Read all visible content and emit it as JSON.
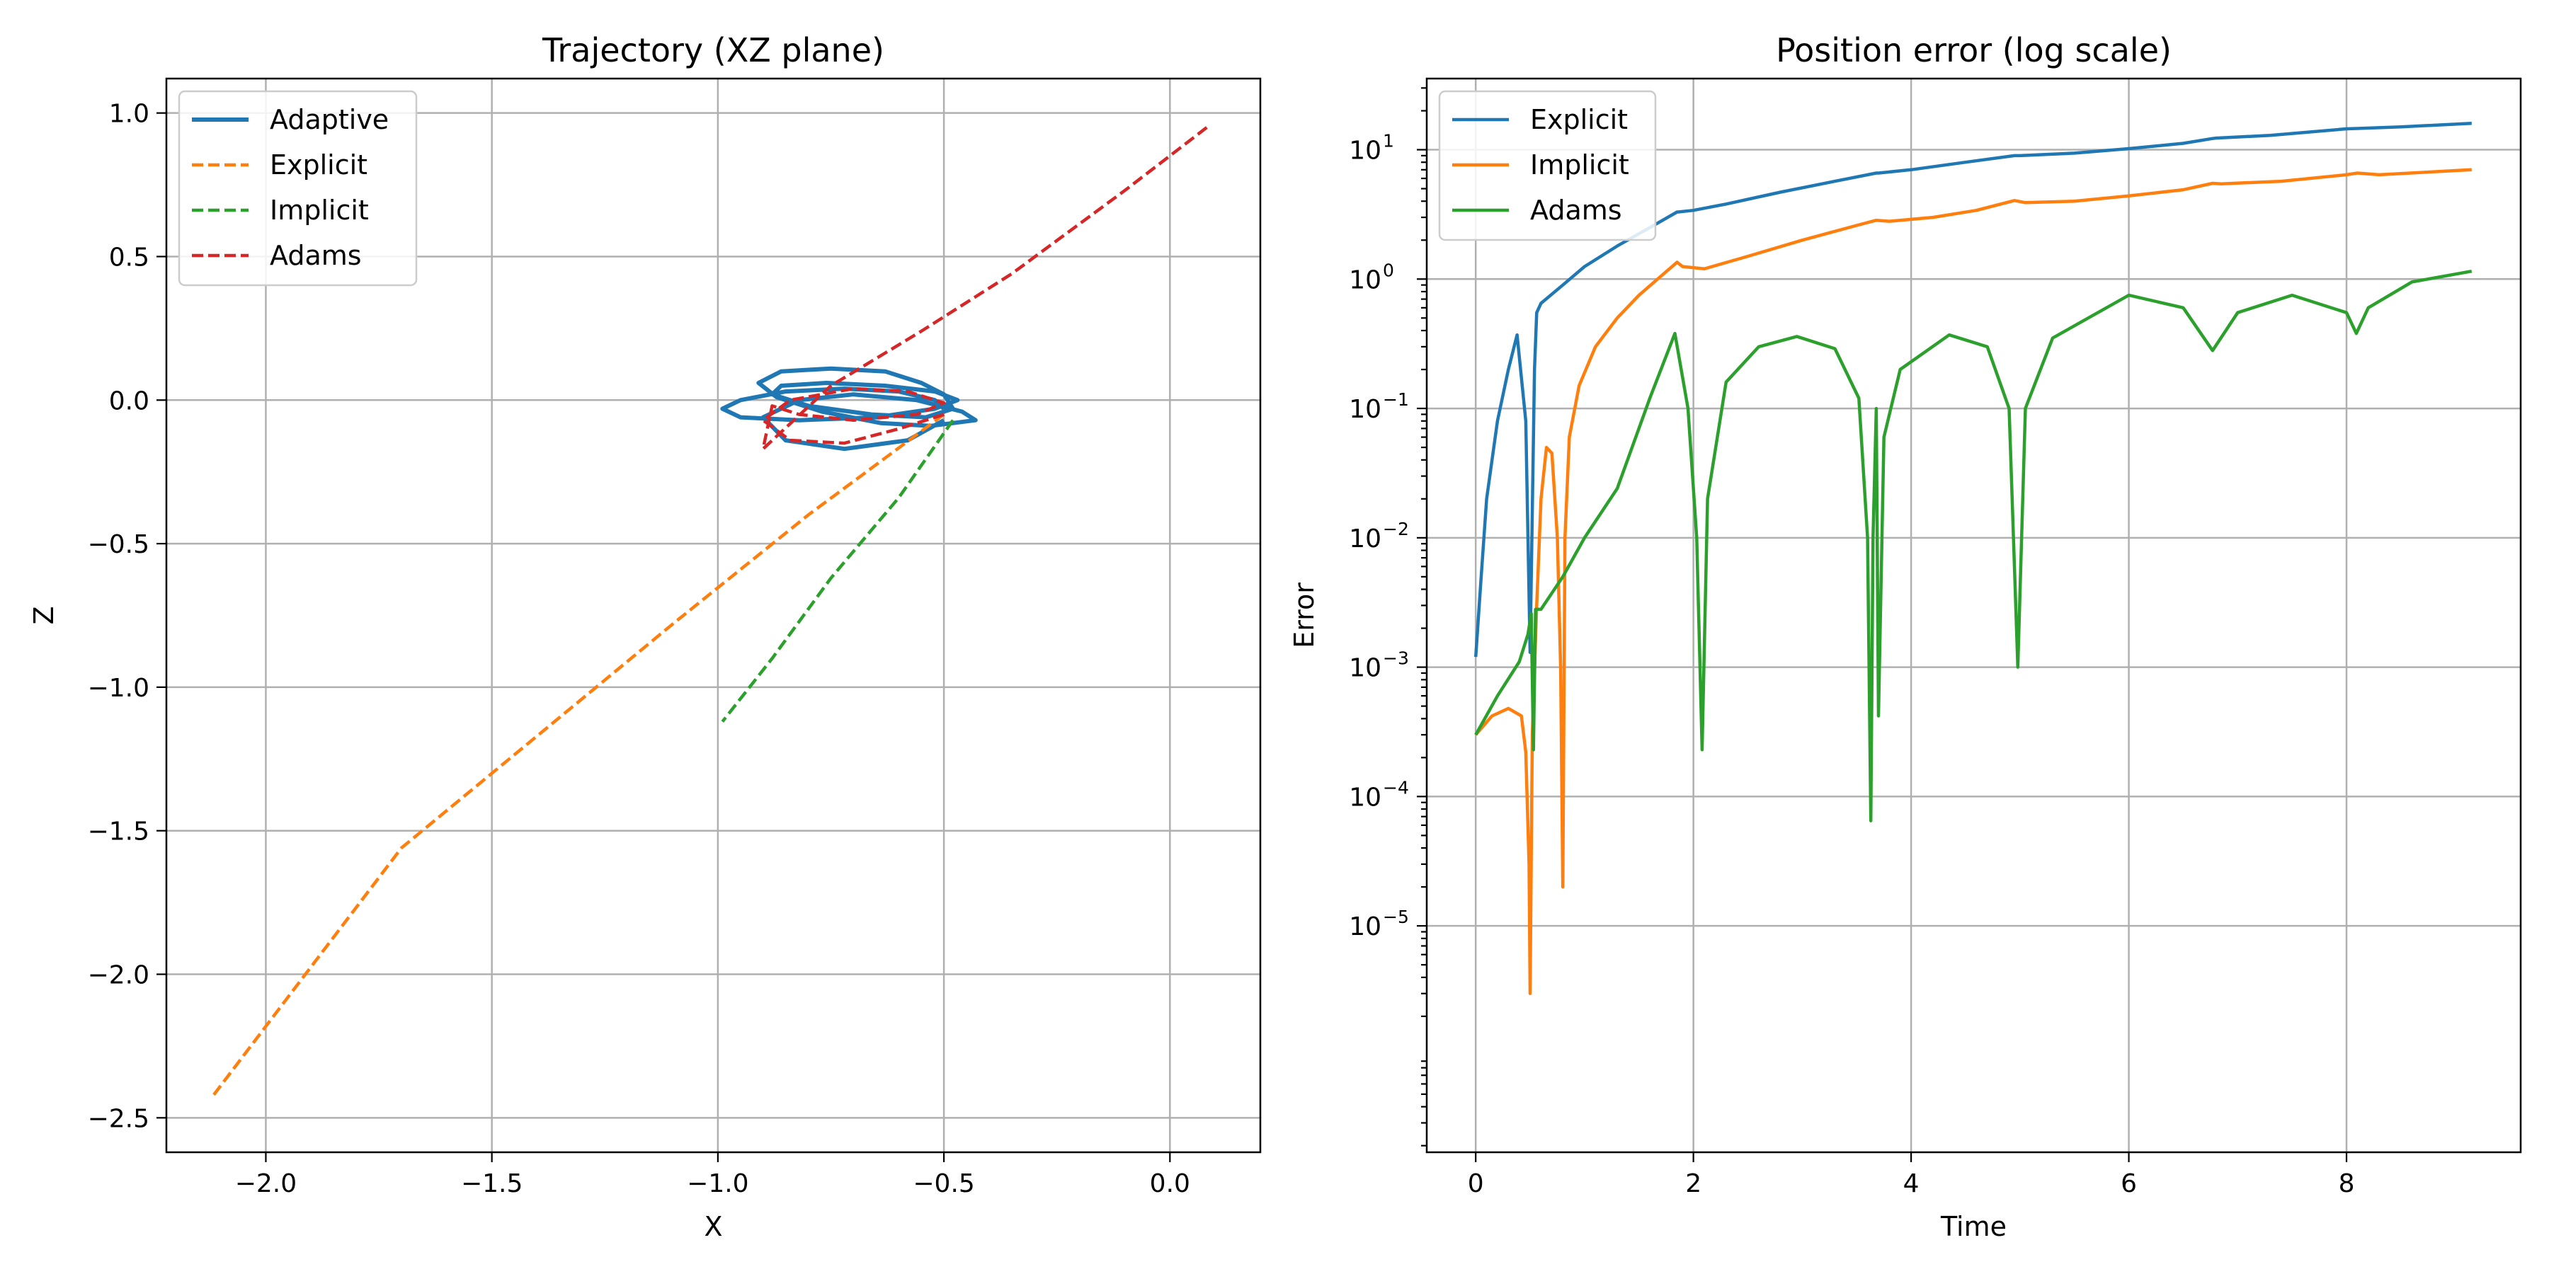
{
  "chart_data": [
    {
      "type": "line",
      "title": "Trajectory (XZ plane)",
      "xlabel": "X",
      "ylabel": "Z",
      "xlim": [
        -2.22,
        0.2
      ],
      "ylim": [
        -2.62,
        1.12
      ],
      "x_ticks": [
        -2.0,
        -1.5,
        -1.0,
        -0.5,
        0.0
      ],
      "x_tick_labels": [
        "−2.0",
        "−1.5",
        "−1.0",
        "−0.5",
        "0.0"
      ],
      "y_ticks": [
        -2.5,
        -2.0,
        -1.5,
        -1.0,
        -0.5,
        0.0,
        0.5,
        1.0
      ],
      "y_tick_labels": [
        "−2.5",
        "−2.0",
        "−1.5",
        "−1.0",
        "−0.5",
        "0.0",
        "0.5",
        "1.0"
      ],
      "grid": true,
      "legend": "upper-left",
      "series": [
        {
          "name": "Adaptive",
          "color": "#1f77b4",
          "style": "solid",
          "x": [
            -0.5,
            -0.52,
            -0.6,
            -0.72,
            -0.85,
            -0.95,
            -0.99,
            -0.95,
            -0.82,
            -0.65,
            -0.52,
            -0.47,
            -0.52,
            -0.63,
            -0.76,
            -0.86,
            -0.88,
            -0.8,
            -0.66,
            -0.54,
            -0.48,
            -0.5,
            -0.55,
            -0.63,
            -0.75,
            -0.86,
            -0.91,
            -0.87,
            -0.77,
            -0.64,
            -0.53,
            -0.43,
            -0.46,
            -0.56,
            -0.7,
            -0.82,
            -0.9,
            -0.85,
            -0.72,
            -0.58,
            -0.5
          ],
          "y": [
            -0.03,
            0.0,
            0.03,
            0.04,
            0.03,
            0.0,
            -0.03,
            -0.06,
            -0.07,
            -0.06,
            -0.03,
            0.0,
            0.03,
            0.05,
            0.06,
            0.05,
            0.02,
            -0.02,
            -0.05,
            -0.06,
            -0.03,
            0.02,
            0.06,
            0.1,
            0.11,
            0.1,
            0.06,
            0.01,
            -0.04,
            -0.08,
            -0.09,
            -0.07,
            -0.04,
            -0.0,
            0.02,
            0.0,
            -0.06,
            -0.14,
            -0.17,
            -0.14,
            -0.07
          ]
        },
        {
          "name": "Explicit",
          "color": "#ff7f0e",
          "style": "dashed",
          "x": [
            -0.5,
            -0.8,
            -1.1,
            -1.4,
            -1.7,
            -2.12
          ],
          "y": [
            -0.05,
            -0.4,
            -0.78,
            -1.17,
            -1.56,
            -2.43
          ]
        },
        {
          "name": "Implicit",
          "color": "#2ca02c",
          "style": "dashed",
          "x": [
            -0.48,
            -0.6,
            -0.75,
            -0.88,
            -0.99
          ],
          "y": [
            -0.07,
            -0.34,
            -0.62,
            -0.9,
            -1.12
          ]
        },
        {
          "name": "Adams",
          "color": "#d62728",
          "style": "dashed",
          "x": [
            -0.5,
            -0.6,
            -0.72,
            -0.84,
            -0.9,
            -0.84,
            -0.7,
            -0.58,
            -0.5,
            -0.56,
            -0.7,
            -0.82,
            -0.88,
            -0.9,
            -0.75,
            -0.55,
            -0.35,
            -0.1,
            0.09
          ],
          "y": [
            -0.05,
            -0.1,
            -0.15,
            -0.14,
            -0.07,
            0.0,
            0.04,
            0.03,
            -0.01,
            -0.05,
            -0.07,
            -0.05,
            -0.02,
            -0.17,
            0.05,
            0.24,
            0.44,
            0.73,
            0.96
          ]
        }
      ]
    },
    {
      "type": "line",
      "title": "Position error (log scale)",
      "xlabel": "Time",
      "ylabel": "Error",
      "xlim": [
        -0.45,
        9.6
      ],
      "ylim": [
        -6.75,
        1.55
      ],
      "yscale": "log",
      "x_ticks": [
        0,
        2,
        4,
        6,
        8
      ],
      "x_tick_labels": [
        "0",
        "2",
        "4",
        "6",
        "8"
      ],
      "y_ticks": [
        -5,
        -4,
        -3,
        -2,
        -1,
        0,
        1
      ],
      "y_tick_labels": [
        "10",
        "10",
        "10",
        "10",
        "10",
        "10",
        "10"
      ],
      "y_tick_exponents": [
        "−5",
        "−4",
        "−3",
        "−2",
        "−1",
        "0",
        "1"
      ],
      "grid": true,
      "legend": "upper-left",
      "series": [
        {
          "name": "Explicit",
          "color": "#1f77b4",
          "style": "solid",
          "x": [
            0.0,
            0.05,
            0.1,
            0.2,
            0.3,
            0.38,
            0.46,
            0.5,
            0.54,
            0.56,
            0.6,
            0.8,
            1.0,
            1.3,
            1.6,
            1.85,
            1.86,
            2.0,
            2.3,
            2.8,
            3.3,
            3.68,
            3.7,
            4.0,
            4.5,
            4.95,
            5.0,
            5.5,
            6.0,
            6.5,
            6.77,
            6.8,
            7.3,
            8.0,
            8.1,
            8.5,
            9.15
          ],
          "y": [
            0.0012,
            0.005,
            0.02,
            0.08,
            0.2,
            0.37,
            0.08,
            0.0013,
            0.2,
            0.55,
            0.65,
            0.9,
            1.25,
            1.8,
            2.5,
            3.3,
            3.3,
            3.4,
            3.8,
            4.7,
            5.7,
            6.6,
            6.6,
            7.0,
            8.0,
            9.0,
            9.0,
            9.4,
            10.2,
            11.2,
            12.2,
            12.3,
            12.9,
            14.5,
            14.6,
            15.0,
            16.0
          ]
        },
        {
          "name": "Implicit",
          "color": "#ff7f0e",
          "style": "solid",
          "x": [
            0.0,
            0.15,
            0.3,
            0.42,
            0.46,
            0.49,
            0.5,
            0.52,
            0.56,
            0.6,
            0.65,
            0.7,
            0.75,
            0.78,
            0.8,
            0.82,
            0.86,
            0.95,
            1.1,
            1.3,
            1.5,
            1.7,
            1.85,
            1.9,
            2.1,
            2.5,
            3.0,
            3.5,
            3.68,
            3.8,
            4.2,
            4.6,
            4.95,
            5.05,
            5.5,
            6.0,
            6.5,
            6.77,
            6.85,
            7.4,
            8.0,
            8.1,
            8.3,
            9.15
          ],
          "y": [
            0.0003,
            0.00042,
            0.00048,
            0.00042,
            0.00022,
            3e-05,
            3e-06,
            0.0003,
            0.003,
            0.02,
            0.05,
            0.045,
            0.01,
            0.001,
            2e-05,
            0.01,
            0.06,
            0.15,
            0.3,
            0.5,
            0.75,
            1.05,
            1.35,
            1.25,
            1.2,
            1.5,
            2.0,
            2.6,
            2.85,
            2.8,
            3.0,
            3.4,
            4.05,
            3.9,
            4.0,
            4.4,
            4.9,
            5.5,
            5.45,
            5.7,
            6.4,
            6.6,
            6.4,
            7.0
          ]
        },
        {
          "name": "Adams",
          "color": "#2ca02c",
          "style": "solid",
          "x": [
            0.0,
            0.2,
            0.4,
            0.48,
            0.51,
            0.53,
            0.55,
            0.6,
            0.8,
            1.0,
            1.3,
            1.6,
            1.83,
            1.95,
            2.03,
            2.08,
            2.13,
            2.3,
            2.6,
            2.95,
            3.3,
            3.52,
            3.6,
            3.63,
            3.65,
            3.68,
            3.7,
            3.75,
            3.9,
            4.35,
            4.7,
            4.9,
            4.98,
            5.05,
            5.3,
            6.0,
            6.5,
            6.77,
            7.0,
            7.5,
            8.0,
            8.09,
            8.2,
            8.6,
            9.15
          ],
          "y": [
            0.0003,
            0.0006,
            0.0011,
            0.0018,
            0.0026,
            0.00023,
            0.0028,
            0.0028,
            0.005,
            0.01,
            0.024,
            0.12,
            0.38,
            0.1,
            0.01,
            0.00023,
            0.02,
            0.16,
            0.3,
            0.36,
            0.29,
            0.12,
            0.01,
            6.5e-05,
            0.01,
            0.1,
            0.00042,
            0.06,
            0.2,
            0.37,
            0.3,
            0.1,
            0.001,
            0.1,
            0.35,
            0.75,
            0.6,
            0.28,
            0.55,
            0.75,
            0.55,
            0.38,
            0.6,
            0.95,
            1.15
          ]
        }
      ]
    }
  ]
}
